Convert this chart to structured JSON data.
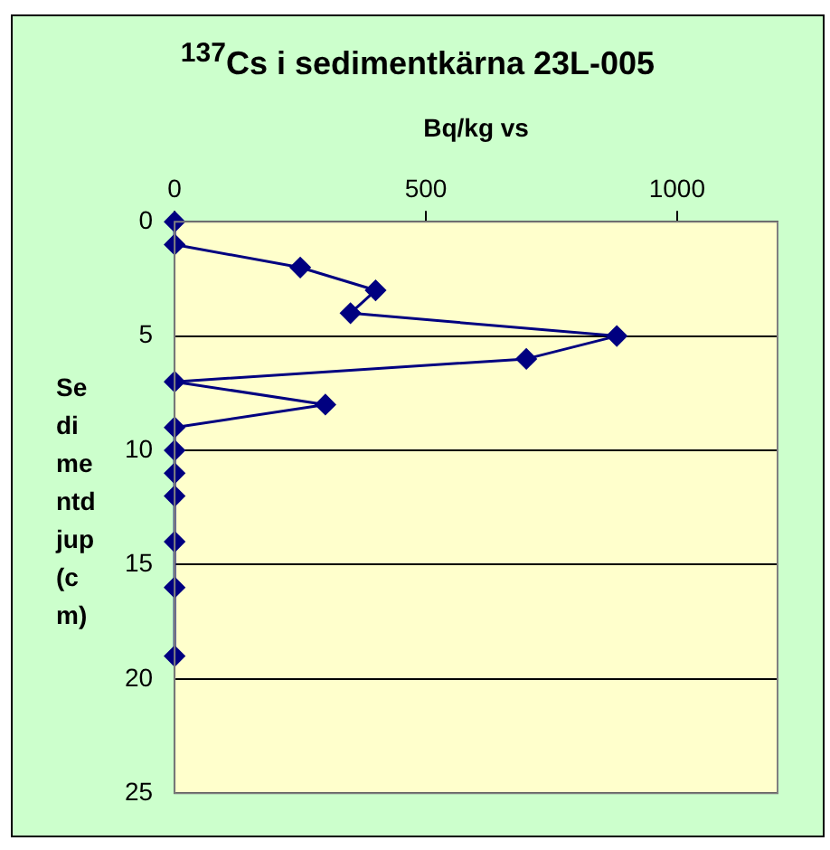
{
  "chart_data": {
    "type": "line",
    "title": "$^{137}$Cs i sedimentkärna 23L-005",
    "xlabel": "Bq/kg vs",
    "ylabel": "Sedimentdjup (cm)",
    "x": [
      0,
      0,
      250,
      400,
      350,
      880,
      700,
      0,
      300,
      0,
      0,
      0,
      0,
      0,
      0,
      0
    ],
    "series": [
      {
        "color": "#000080",
        "values": [
          0,
          1,
          2,
          3,
          4,
          5,
          6,
          7,
          8,
          9,
          10,
          11,
          12,
          14,
          16,
          19
        ]
      }
    ],
    "xlim": [
      0,
      1200
    ],
    "xticks": [
      0,
      500,
      1000
    ],
    "ylim": [
      25,
      0
    ],
    "yticks": [
      0,
      5,
      10,
      15,
      20,
      25
    ],
    "grid": "y",
    "marker": "diamond",
    "line_style": "solid",
    "legend": false
  }
}
